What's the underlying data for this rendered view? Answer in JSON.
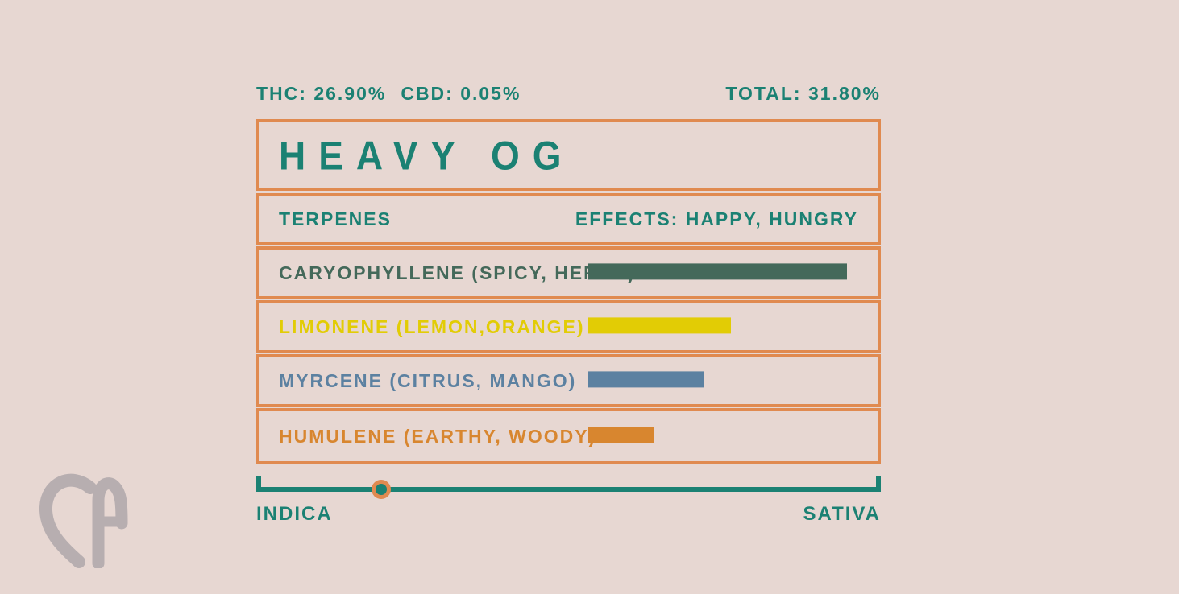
{
  "colors": {
    "bg": "#e7d7d2",
    "teal": "#1b8173",
    "orange": "#e08a50",
    "logo_gray": "#b7aeb0"
  },
  "stats": {
    "thc": "THC: 26.90%",
    "cbd": "CBD: 0.05%",
    "total": "TOTAL: 31.80%"
  },
  "strain": {
    "name": "HEAVY OG"
  },
  "table_header": {
    "terpenes_label": "TERPENES",
    "effects_label": "EFFECTS: HAPPY, HUNGRY"
  },
  "terpenes": [
    {
      "label": "CARYOPHYLLENE (SPICY, HERBS)",
      "color": "#44695a",
      "bar_pct": 94
    },
    {
      "label": "LIMONENE (LEMON,ORANGE)",
      "color": "#e2cc05",
      "bar_pct": 52
    },
    {
      "label": "MYRCENE (CITRUS, MANGO)",
      "color": "#5c81a1",
      "bar_pct": 42
    },
    {
      "label": "HUMULENE (EARTHY, WOODY)",
      "color": "#d8862f",
      "bar_pct": 24
    }
  ],
  "spectrum": {
    "left_label": "INDICA",
    "right_label": "SATIVA",
    "position_pct": 20
  },
  "logo": {
    "name": "CA heart monogram"
  }
}
